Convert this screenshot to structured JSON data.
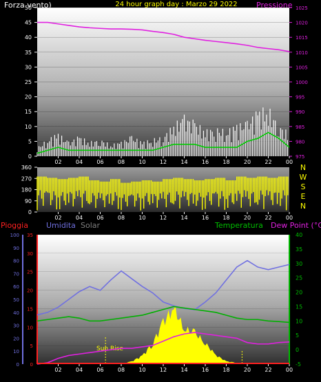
{
  "header": {
    "left_label": "Forza vento)",
    "title": "24 hour graph day : Marzo 29 2022",
    "right_label": "Pressione"
  },
  "bottom_header": {
    "rain": "Pioggia",
    "humidity": "Umidita",
    "solar": "Solar",
    "temperature": "Temperatura",
    "dewpoint": "Dew Point (°C)"
  },
  "colors": {
    "wind": "#ffffff",
    "avg_wind": "#00cc00",
    "pressure": "#e020e0",
    "direction": "#ffff00",
    "humidity": "#7070e0",
    "temperature": "#00b000",
    "dewpoint": "#e020e0",
    "solar": "#ffff00",
    "rain": "#ff2020",
    "title": "#ffff00",
    "axis_text": "#ffffff"
  },
  "annotation": {
    "sunrise": "Sun Rise"
  },
  "x_ticks": [
    "02",
    "04",
    "06",
    "08",
    "10",
    "12",
    "14",
    "16",
    "18",
    "20",
    "22",
    "00"
  ],
  "chart_data": [
    {
      "type": "line",
      "name_text": "wind-pressure",
      "title": "24 hour graph day : Marzo 29 2022",
      "ylabel": "Forza vento)",
      "ylabel_right": "Pressione",
      "ylim": [
        0,
        50
      ],
      "y_ticks": [
        0,
        5,
        10,
        15,
        20,
        25,
        30,
        35,
        40,
        45,
        50
      ],
      "ylim_right": [
        975,
        1025
      ],
      "y_ticks_right": [
        975,
        980,
        985,
        990,
        995,
        1000,
        1005,
        1010,
        1015,
        1020,
        1025
      ],
      "x": [
        0,
        1,
        2,
        3,
        4,
        5,
        6,
        7,
        8,
        9,
        10,
        11,
        12,
        13,
        14,
        15,
        16,
        17,
        18,
        19,
        20,
        21,
        22,
        23,
        24
      ],
      "series": [
        {
          "axis": "right",
          "values": [
            1020,
            1020,
            1019.5,
            1019,
            1018.5,
            1018.2,
            1018,
            1017.8,
            1017.8,
            1017.7,
            1017.5,
            1017,
            1016.6,
            1016,
            1015,
            1014.5,
            1014,
            1013.6,
            1013.2,
            1012.8,
            1012.3,
            1011.6,
            1011.2,
            1010.8,
            1010.2
          ]
        },
        {
          "axis": "left",
          "gust": true,
          "values": [
            3,
            6,
            8,
            5,
            7,
            5,
            6,
            4,
            5,
            7,
            5,
            6,
            7,
            11,
            14,
            12,
            9,
            10,
            9,
            11,
            12,
            16,
            17,
            11,
            8
          ]
        },
        {
          "axis": "left",
          "gust": false,
          "values": [
            1,
            2,
            3,
            2,
            2,
            2,
            2,
            2,
            2,
            2,
            2,
            2,
            3,
            4,
            4,
            4,
            3,
            3,
            3,
            3,
            5,
            6,
            8,
            6,
            3
          ]
        }
      ]
    },
    {
      "type": "scatter",
      "name_text": "wind-direction",
      "ylim": [
        0,
        360
      ],
      "y_ticks": [
        0,
        90,
        180,
        270,
        360
      ],
      "compass": [
        "N",
        "W",
        "S",
        "E",
        "N"
      ],
      "x": [
        0,
        1,
        2,
        3,
        4,
        5,
        6,
        7,
        8,
        9,
        10,
        11,
        12,
        13,
        14,
        15,
        16,
        17,
        18,
        19,
        20,
        21,
        22,
        23,
        24
      ],
      "values": [
        270,
        260,
        250,
        260,
        270,
        240,
        230,
        250,
        220,
        230,
        240,
        230,
        250,
        260,
        250,
        240,
        250,
        260,
        240,
        270,
        260,
        270,
        260,
        270,
        280
      ]
    },
    {
      "type": "line",
      "name_text": "weather",
      "ylim_left": [
        0,
        100
      ],
      "y_ticks_left": [
        0,
        10,
        20,
        30,
        40,
        50,
        60,
        70,
        80,
        90,
        100
      ],
      "ylim_rain": [
        0,
        35
      ],
      "y_ticks_rain": [
        0,
        5,
        10,
        15,
        20,
        25,
        30,
        35
      ],
      "ylim_right": [
        -5,
        40
      ],
      "y_ticks_right": [
        -5,
        0,
        5,
        10,
        15,
        20,
        25,
        30,
        35,
        40
      ],
      "x": [
        0,
        1,
        2,
        3,
        4,
        5,
        6,
        7,
        8,
        9,
        10,
        11,
        12,
        13,
        14,
        15,
        16,
        17,
        18,
        19,
        20,
        21,
        22,
        23,
        24
      ],
      "series": [
        {
          "axis": "left",
          "values": [
            38,
            40,
            44,
            50,
            56,
            60,
            57,
            65,
            72,
            66,
            60,
            55,
            48,
            45,
            43,
            42,
            48,
            55,
            65,
            75,
            80,
            75,
            73,
            75,
            77
          ]
        },
        {
          "axis": "right",
          "values": [
            10,
            10.5,
            11,
            11.5,
            11,
            10,
            10,
            10.5,
            11,
            11.5,
            12,
            13,
            14,
            15,
            14.5,
            14,
            13.5,
            13,
            12,
            11,
            10.5,
            10.5,
            10,
            9.8,
            9.5
          ]
        },
        {
          "axis": "right",
          "values": [
            -5,
            -4.5,
            -3,
            -2,
            -1.5,
            -1,
            -0.5,
            0,
            0.5,
            0.5,
            1,
            1.5,
            3,
            4.5,
            5.5,
            6,
            5.5,
            5,
            4.5,
            4,
            2.5,
            2,
            2,
            2.5,
            2.7
          ]
        },
        {
          "axis": "solar",
          "values": [
            0,
            0,
            0,
            0,
            0,
            0,
            0,
            0,
            2,
            40,
            120,
            300,
            600,
            800,
            500,
            450,
            300,
            130,
            40,
            20,
            0,
            0,
            0,
            0,
            0
          ]
        },
        {
          "axis": "rain",
          "values": [
            0,
            0,
            0,
            0,
            0,
            0,
            0,
            0,
            0,
            0,
            0,
            0,
            0,
            0,
            0,
            0,
            0,
            0,
            0,
            0,
            0,
            0,
            0,
            0,
            0
          ]
        }
      ],
      "solar_max": 800,
      "sunrise_hour": 6.5,
      "sunset_hour": 19.5
    }
  ]
}
